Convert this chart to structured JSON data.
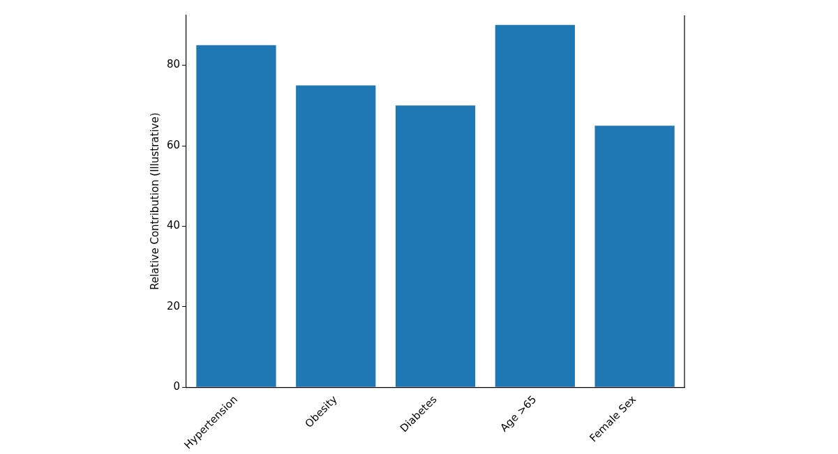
{
  "chart_data": {
    "type": "bar",
    "ylabel": "Relative Contribution (Illustrative)",
    "categories": [
      "Hypertension",
      "Obesity",
      "Diabetes",
      "Age >65",
      "Female Sex"
    ],
    "values": [
      85,
      75,
      70,
      90,
      65
    ],
    "color": "#1f77b4",
    "ylim": [
      0,
      92.4
    ],
    "yticks": [
      0,
      20,
      40,
      60,
      80
    ],
    "grid": false,
    "legend": false
  }
}
